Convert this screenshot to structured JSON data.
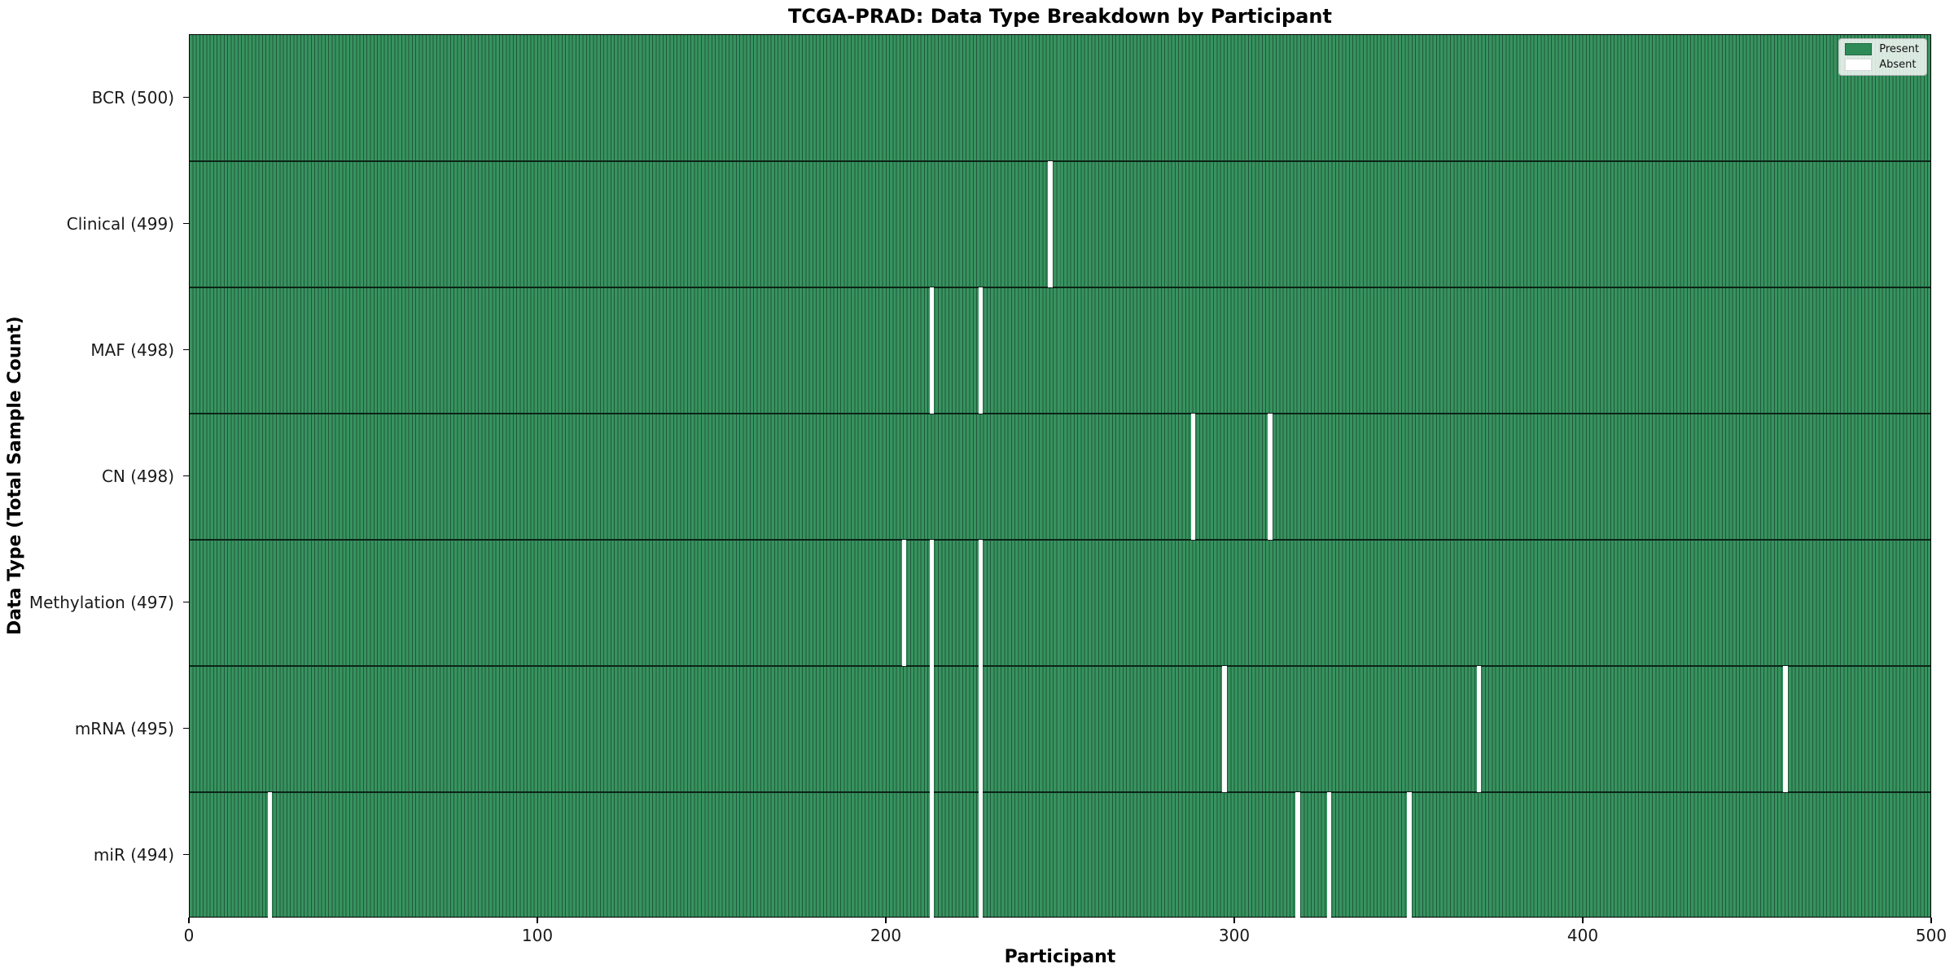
{
  "title": "TCGA-PRAD: Data Type Breakdown by Participant",
  "xlabel": "Participant",
  "ylabel": "Data Type (Total Sample Count)",
  "legend": {
    "present_label": "Present",
    "absent_label": "Absent"
  },
  "colors": {
    "present": "#2e8b57",
    "present_fill": "#37935f",
    "bar_edge": "#20573a",
    "absent": "#ffffff",
    "legend_border": "#b7b7b7"
  },
  "chart_data": {
    "type": "heatmap",
    "title": "TCGA-PRAD: Data Type Breakdown by Participant",
    "xlabel": "Participant",
    "ylabel": "Data Type (Total Sample Count)",
    "x_range": [
      0,
      500
    ],
    "x_ticks": [
      0,
      100,
      200,
      300,
      400,
      500
    ],
    "n_participants": 500,
    "grid": false,
    "legend_position": "upper right",
    "legend": [
      {
        "label": "Present",
        "color": "#2e8b57"
      },
      {
        "label": "Absent",
        "color": "#ffffff"
      }
    ],
    "rows": [
      {
        "label": "BCR (500)",
        "data_type": "BCR",
        "total_samples": 500,
        "absent_participants": []
      },
      {
        "label": "Clinical (499)",
        "data_type": "Clinical",
        "total_samples": 499,
        "absent_participants": [
          247
        ]
      },
      {
        "label": "MAF (498)",
        "data_type": "MAF",
        "total_samples": 498,
        "absent_participants": [
          213,
          227
        ]
      },
      {
        "label": "CN (498)",
        "data_type": "CN",
        "total_samples": 498,
        "absent_participants": [
          288,
          310
        ]
      },
      {
        "label": "Methylation (497)",
        "data_type": "Methylation",
        "total_samples": 497,
        "absent_participants": [
          205,
          213,
          227
        ]
      },
      {
        "label": "mRNA (495)",
        "data_type": "mRNA",
        "total_samples": 495,
        "absent_participants": [
          213,
          227,
          297,
          370,
          458
        ]
      },
      {
        "label": "miR (494)",
        "data_type": "miR",
        "total_samples": 494,
        "absent_participants": [
          23,
          213,
          227,
          318,
          327,
          350
        ]
      }
    ]
  }
}
